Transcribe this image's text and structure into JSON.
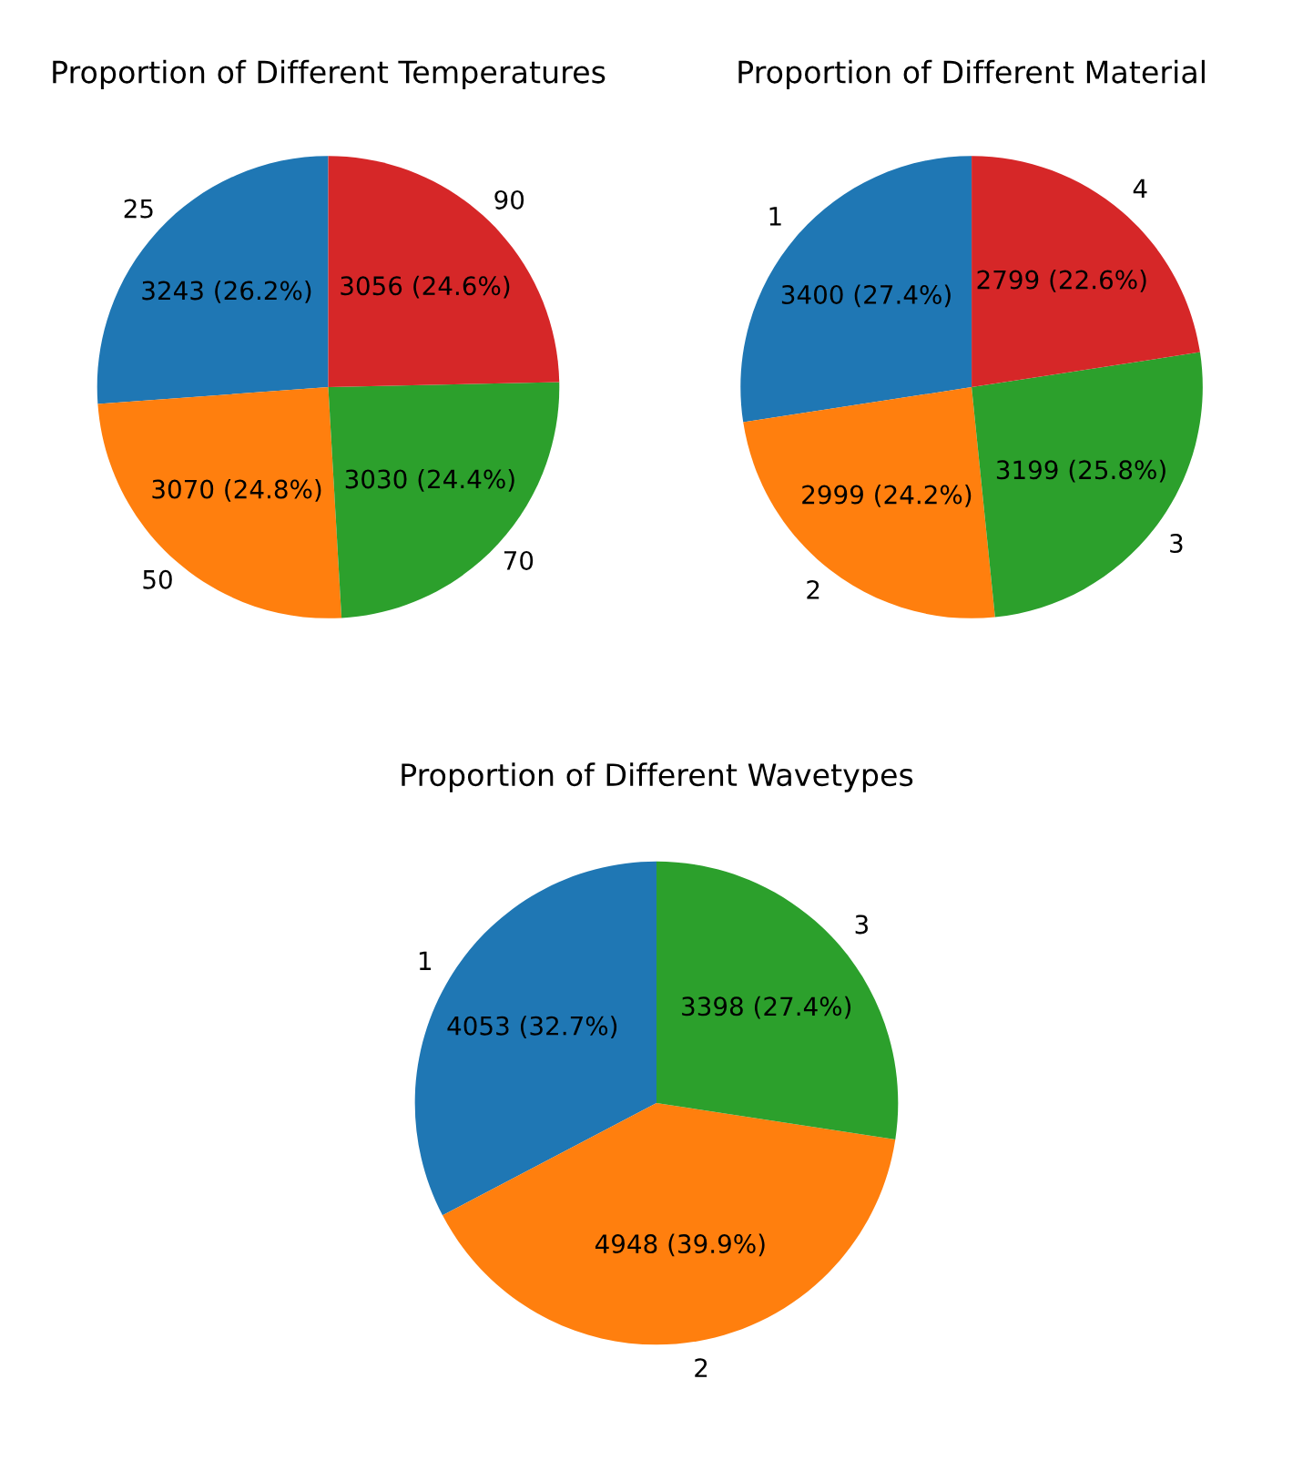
{
  "chart_data": [
    {
      "type": "pie",
      "title": "Proportion of Different Temperatures",
      "categories": [
        "25",
        "50",
        "70",
        "90"
      ],
      "values": [
        3243,
        3070,
        3030,
        3056
      ],
      "colors": [
        "#1f77b4",
        "#ff7f0e",
        "#2ca02c",
        "#d62728"
      ],
      "value_labels": [
        "3243 (26.2%)",
        "3070 (24.8%)",
        "3030 (24.4%)",
        "3056 (24.6%)"
      ]
    },
    {
      "type": "pie",
      "title": "Proportion of Different Material",
      "categories": [
        "1",
        "2",
        "3",
        "4"
      ],
      "values": [
        3400,
        2999,
        3199,
        2799
      ],
      "colors": [
        "#1f77b4",
        "#ff7f0e",
        "#2ca02c",
        "#d62728"
      ],
      "value_labels": [
        "3400 (27.4%)",
        "2999 (24.2%)",
        "3199 (25.8%)",
        "2799 (22.6%)"
      ]
    },
    {
      "type": "pie",
      "title": "Proportion of Different Wavetypes",
      "categories": [
        "1",
        "2",
        "3"
      ],
      "values": [
        4053,
        4948,
        3398
      ],
      "colors": [
        "#1f77b4",
        "#ff7f0e",
        "#2ca02c"
      ],
      "value_labels": [
        "4053 (32.7%)",
        "4948 (39.9%)",
        "3398 (27.4%)"
      ]
    }
  ]
}
